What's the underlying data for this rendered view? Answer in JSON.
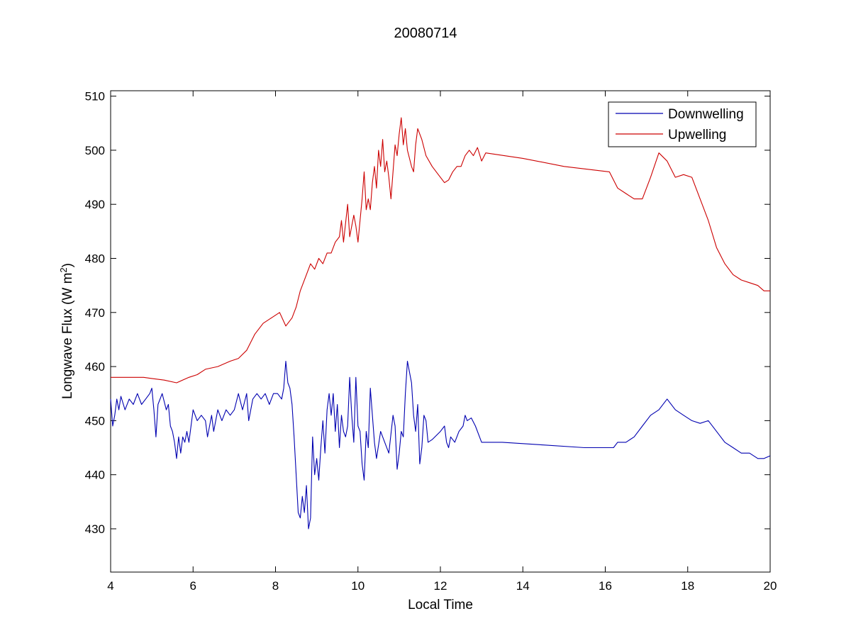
{
  "chart_data": {
    "type": "line",
    "title": "20080714",
    "xlabel": "Local Time",
    "ylabel_main": "Longwave Flux (W m",
    "ylabel_sup": "2",
    "ylabel_close": ")",
    "xlim": [
      4,
      20
    ],
    "ylim": [
      422,
      511
    ],
    "xticks": [
      4,
      6,
      8,
      10,
      12,
      14,
      16,
      18,
      20
    ],
    "yticks": [
      430,
      440,
      450,
      460,
      470,
      480,
      490,
      500,
      510
    ],
    "grid": false,
    "legend_position": "top-right",
    "series": [
      {
        "name": "Downwelling",
        "color": "#0000b0",
        "points": [
          [
            4.0,
            454
          ],
          [
            4.05,
            449
          ],
          [
            4.1,
            451
          ],
          [
            4.15,
            454
          ],
          [
            4.2,
            452
          ],
          [
            4.25,
            454.5
          ],
          [
            4.35,
            452
          ],
          [
            4.45,
            454
          ],
          [
            4.55,
            453
          ],
          [
            4.65,
            455
          ],
          [
            4.75,
            453
          ],
          [
            4.85,
            454
          ],
          [
            4.95,
            455
          ],
          [
            5.0,
            456
          ],
          [
            5.05,
            452
          ],
          [
            5.1,
            447
          ],
          [
            5.15,
            453
          ],
          [
            5.25,
            455
          ],
          [
            5.35,
            452
          ],
          [
            5.4,
            453
          ],
          [
            5.45,
            449
          ],
          [
            5.5,
            448
          ],
          [
            5.55,
            446
          ],
          [
            5.6,
            443
          ],
          [
            5.65,
            447
          ],
          [
            5.7,
            444
          ],
          [
            5.75,
            447
          ],
          [
            5.8,
            446
          ],
          [
            5.85,
            448
          ],
          [
            5.9,
            446
          ],
          [
            6.0,
            452
          ],
          [
            6.1,
            450
          ],
          [
            6.2,
            451
          ],
          [
            6.3,
            450
          ],
          [
            6.35,
            447
          ],
          [
            6.45,
            451
          ],
          [
            6.5,
            448
          ],
          [
            6.6,
            452
          ],
          [
            6.7,
            450
          ],
          [
            6.8,
            452
          ],
          [
            6.9,
            451
          ],
          [
            7.0,
            452
          ],
          [
            7.1,
            455
          ],
          [
            7.2,
            452
          ],
          [
            7.3,
            455
          ],
          [
            7.35,
            450
          ],
          [
            7.45,
            454
          ],
          [
            7.55,
            455
          ],
          [
            7.65,
            454
          ],
          [
            7.75,
            455
          ],
          [
            7.85,
            453
          ],
          [
            7.95,
            455
          ],
          [
            8.05,
            455
          ],
          [
            8.15,
            454
          ],
          [
            8.2,
            456
          ],
          [
            8.25,
            461
          ],
          [
            8.3,
            457
          ],
          [
            8.35,
            456
          ],
          [
            8.4,
            453
          ],
          [
            8.45,
            447
          ],
          [
            8.5,
            440
          ],
          [
            8.55,
            433
          ],
          [
            8.6,
            432
          ],
          [
            8.65,
            436
          ],
          [
            8.7,
            433
          ],
          [
            8.75,
            438
          ],
          [
            8.8,
            430
          ],
          [
            8.85,
            432
          ],
          [
            8.9,
            447
          ],
          [
            8.95,
            440
          ],
          [
            9.0,
            443
          ],
          [
            9.05,
            439
          ],
          [
            9.1,
            445
          ],
          [
            9.15,
            450
          ],
          [
            9.2,
            444
          ],
          [
            9.25,
            452
          ],
          [
            9.3,
            455
          ],
          [
            9.35,
            451
          ],
          [
            9.4,
            455
          ],
          [
            9.45,
            448
          ],
          [
            9.5,
            453
          ],
          [
            9.55,
            445
          ],
          [
            9.6,
            451
          ],
          [
            9.65,
            448
          ],
          [
            9.7,
            447
          ],
          [
            9.75,
            449
          ],
          [
            9.8,
            458
          ],
          [
            9.85,
            451
          ],
          [
            9.9,
            446
          ],
          [
            9.95,
            458
          ],
          [
            10.0,
            449
          ],
          [
            10.05,
            448
          ],
          [
            10.1,
            442
          ],
          [
            10.15,
            439
          ],
          [
            10.2,
            448
          ],
          [
            10.25,
            445
          ],
          [
            10.3,
            456
          ],
          [
            10.35,
            451
          ],
          [
            10.4,
            446
          ],
          [
            10.45,
            443
          ],
          [
            10.55,
            448
          ],
          [
            10.65,
            446
          ],
          [
            10.75,
            444
          ],
          [
            10.85,
            451
          ],
          [
            10.9,
            449
          ],
          [
            10.95,
            441
          ],
          [
            11.0,
            444
          ],
          [
            11.05,
            448
          ],
          [
            11.1,
            447
          ],
          [
            11.15,
            455
          ],
          [
            11.2,
            461
          ],
          [
            11.3,
            457
          ],
          [
            11.35,
            451
          ],
          [
            11.4,
            448
          ],
          [
            11.45,
            453
          ],
          [
            11.5,
            442
          ],
          [
            11.55,
            445
          ],
          [
            11.6,
            451
          ],
          [
            11.65,
            450
          ],
          [
            11.7,
            446
          ],
          [
            11.8,
            446.5
          ],
          [
            12.0,
            448
          ],
          [
            12.1,
            449
          ],
          [
            12.15,
            446
          ],
          [
            12.2,
            445
          ],
          [
            12.25,
            447
          ],
          [
            12.35,
            446
          ],
          [
            12.45,
            448
          ],
          [
            12.55,
            449
          ],
          [
            12.6,
            451
          ],
          [
            12.65,
            450
          ],
          [
            12.75,
            450.5
          ],
          [
            12.85,
            449
          ],
          [
            12.95,
            447
          ],
          [
            13.0,
            446
          ],
          [
            13.5,
            446
          ],
          [
            14.5,
            445.5
          ],
          [
            15.5,
            445
          ],
          [
            16.2,
            445
          ],
          [
            16.3,
            446
          ],
          [
            16.5,
            446
          ],
          [
            16.7,
            447
          ],
          [
            16.9,
            449
          ],
          [
            17.1,
            451
          ],
          [
            17.3,
            452
          ],
          [
            17.5,
            454
          ],
          [
            17.7,
            452
          ],
          [
            17.9,
            451
          ],
          [
            18.1,
            450
          ],
          [
            18.3,
            449.5
          ],
          [
            18.5,
            450
          ],
          [
            18.7,
            448
          ],
          [
            18.9,
            446
          ],
          [
            19.1,
            445
          ],
          [
            19.3,
            444
          ],
          [
            19.5,
            444
          ],
          [
            19.7,
            443
          ],
          [
            19.85,
            443
          ],
          [
            20.0,
            443.5
          ]
        ]
      },
      {
        "name": "Upwelling",
        "color": "#cc0000",
        "points": [
          [
            4.0,
            458
          ],
          [
            4.4,
            458
          ],
          [
            4.8,
            458
          ],
          [
            5.0,
            457.8
          ],
          [
            5.3,
            457.5
          ],
          [
            5.6,
            457
          ],
          [
            5.9,
            458
          ],
          [
            6.1,
            458.5
          ],
          [
            6.3,
            459.5
          ],
          [
            6.6,
            460
          ],
          [
            6.9,
            461
          ],
          [
            7.1,
            461.5
          ],
          [
            7.3,
            463
          ],
          [
            7.5,
            466
          ],
          [
            7.7,
            468
          ],
          [
            7.9,
            469
          ],
          [
            8.1,
            470
          ],
          [
            8.25,
            467.5
          ],
          [
            8.4,
            469
          ],
          [
            8.5,
            471
          ],
          [
            8.6,
            474
          ],
          [
            8.75,
            477
          ],
          [
            8.85,
            479
          ],
          [
            8.95,
            478
          ],
          [
            9.05,
            480
          ],
          [
            9.15,
            479
          ],
          [
            9.25,
            481
          ],
          [
            9.35,
            481
          ],
          [
            9.45,
            483
          ],
          [
            9.55,
            484
          ],
          [
            9.6,
            487
          ],
          [
            9.65,
            483
          ],
          [
            9.75,
            490
          ],
          [
            9.8,
            484
          ],
          [
            9.9,
            488
          ],
          [
            9.95,
            486
          ],
          [
            10.0,
            483
          ],
          [
            10.1,
            491
          ],
          [
            10.15,
            496
          ],
          [
            10.2,
            489
          ],
          [
            10.25,
            491
          ],
          [
            10.3,
            489
          ],
          [
            10.35,
            494
          ],
          [
            10.4,
            497
          ],
          [
            10.45,
            493
          ],
          [
            10.5,
            500
          ],
          [
            10.55,
            497
          ],
          [
            10.6,
            502
          ],
          [
            10.65,
            496
          ],
          [
            10.7,
            498
          ],
          [
            10.75,
            495
          ],
          [
            10.8,
            491
          ],
          [
            10.9,
            501
          ],
          [
            10.95,
            499
          ],
          [
            11.0,
            503
          ],
          [
            11.05,
            506
          ],
          [
            11.1,
            501
          ],
          [
            11.15,
            504
          ],
          [
            11.2,
            500
          ],
          [
            11.3,
            497
          ],
          [
            11.35,
            496
          ],
          [
            11.4,
            501
          ],
          [
            11.45,
            504
          ],
          [
            11.55,
            502
          ],
          [
            11.65,
            499
          ],
          [
            11.8,
            497
          ],
          [
            11.95,
            495.5
          ],
          [
            12.1,
            494
          ],
          [
            12.2,
            494.5
          ],
          [
            12.3,
            496
          ],
          [
            12.4,
            497
          ],
          [
            12.5,
            497
          ],
          [
            12.6,
            499
          ],
          [
            12.7,
            500
          ],
          [
            12.8,
            499
          ],
          [
            12.9,
            500.5
          ],
          [
            13.0,
            498
          ],
          [
            13.1,
            499.5
          ],
          [
            14.0,
            498.5
          ],
          [
            15.0,
            497
          ],
          [
            16.1,
            496
          ],
          [
            16.3,
            493
          ],
          [
            16.5,
            492
          ],
          [
            16.7,
            491
          ],
          [
            16.9,
            491
          ],
          [
            17.1,
            495
          ],
          [
            17.3,
            499.5
          ],
          [
            17.5,
            498
          ],
          [
            17.7,
            495
          ],
          [
            17.9,
            495.5
          ],
          [
            18.1,
            495
          ],
          [
            18.3,
            491
          ],
          [
            18.5,
            487
          ],
          [
            18.7,
            482
          ],
          [
            18.9,
            479
          ],
          [
            19.1,
            477
          ],
          [
            19.3,
            476
          ],
          [
            19.5,
            475.5
          ],
          [
            19.7,
            475
          ],
          [
            19.85,
            474
          ],
          [
            20.0,
            474
          ]
        ]
      }
    ]
  }
}
